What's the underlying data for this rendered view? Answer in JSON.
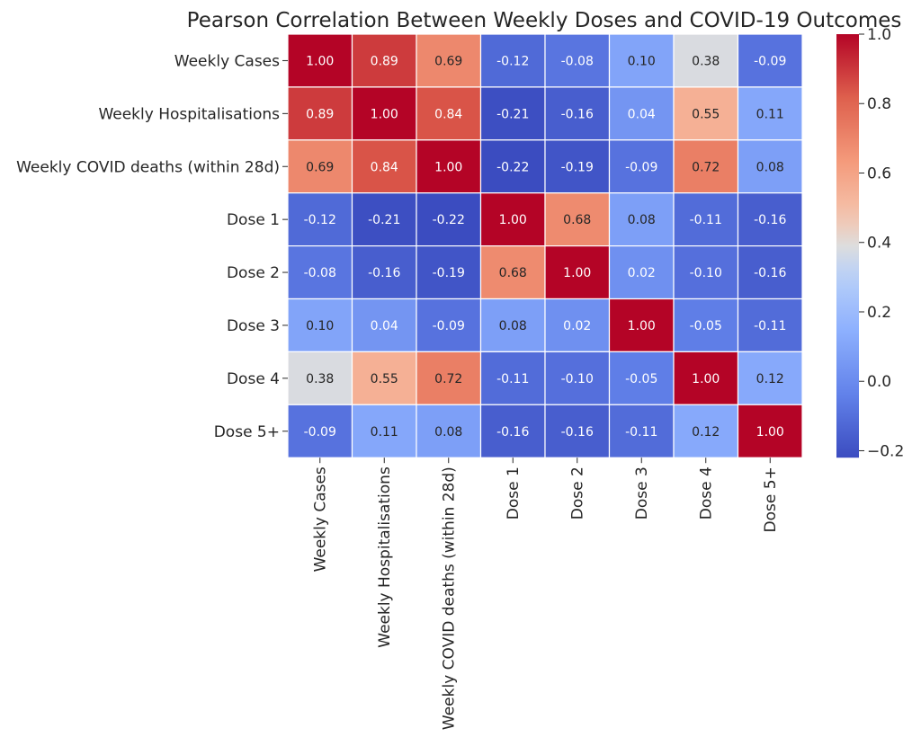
{
  "chart_data": {
    "type": "heatmap",
    "title": "Pearson Correlation Between Weekly Doses and COVID-19 Outcomes",
    "row_labels": [
      "Weekly Cases",
      "Weekly Hospitalisations",
      "Weekly COVID deaths (within 28d)",
      "Dose 1",
      "Dose 2",
      "Dose 3",
      "Dose 4",
      "Dose 5+"
    ],
    "col_labels": [
      "Weekly Cases",
      "Weekly Hospitalisations",
      "Weekly COVID deaths (within 28d)",
      "Dose 1",
      "Dose 2",
      "Dose 3",
      "Dose 4",
      "Dose 5+"
    ],
    "values": [
      [
        1.0,
        0.89,
        0.69,
        -0.12,
        -0.08,
        0.1,
        0.38,
        -0.09
      ],
      [
        0.89,
        1.0,
        0.84,
        -0.21,
        -0.16,
        0.04,
        0.55,
        0.11
      ],
      [
        0.69,
        0.84,
        1.0,
        -0.22,
        -0.19,
        -0.09,
        0.72,
        0.08
      ],
      [
        -0.12,
        -0.21,
        -0.22,
        1.0,
        0.68,
        0.08,
        -0.11,
        -0.16
      ],
      [
        -0.08,
        -0.16,
        -0.19,
        0.68,
        1.0,
        0.02,
        -0.1,
        -0.16
      ],
      [
        0.1,
        0.04,
        -0.09,
        0.08,
        0.02,
        1.0,
        -0.05,
        -0.11
      ],
      [
        0.38,
        0.55,
        0.72,
        -0.11,
        -0.1,
        -0.05,
        1.0,
        0.12
      ],
      [
        -0.09,
        0.11,
        0.08,
        -0.16,
        -0.16,
        -0.11,
        0.12,
        1.0
      ]
    ],
    "annotation_format": "0.00",
    "colormap": "coolwarm",
    "vmin": -0.22,
    "vmax": 1.0,
    "colorbar": {
      "ticks": [
        1.0,
        0.8,
        0.6,
        0.4,
        0.2,
        0.0,
        -0.2
      ],
      "tick_labels": [
        "1.0",
        "0.8",
        "0.6",
        "0.4",
        "0.2",
        "0.0",
        "−0.2"
      ]
    },
    "grid": false,
    "cell_border_color": "#ffffff"
  }
}
